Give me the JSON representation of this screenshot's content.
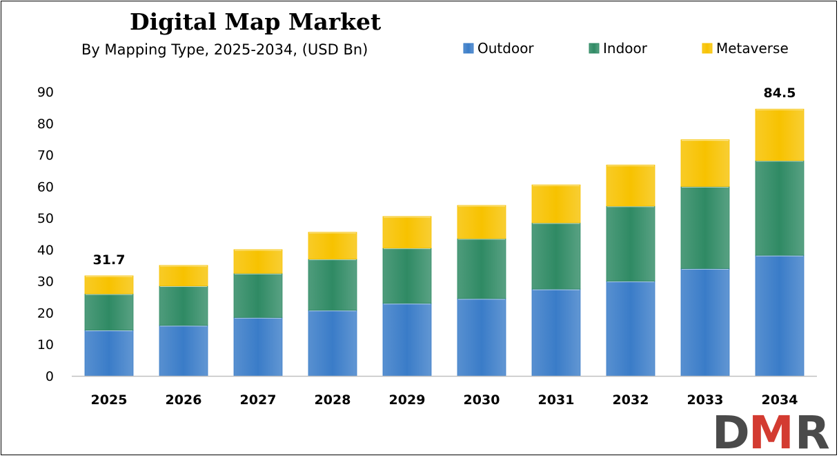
{
  "chart_data": {
    "type": "bar",
    "stacked": true,
    "title": "Digital Map Market",
    "subtitle": "By Mapping Type, 2025-2034, (USD Bn)",
    "categories": [
      "2025",
      "2026",
      "2027",
      "2028",
      "2029",
      "2030",
      "2031",
      "2032",
      "2033",
      "2034"
    ],
    "series": [
      {
        "name": "Outdoor",
        "color": "#3a7cc8",
        "values": [
          14.5,
          16.0,
          18.5,
          20.8,
          23.0,
          24.5,
          27.5,
          30.0,
          34.0,
          38.2
        ]
      },
      {
        "name": "Indoor",
        "color": "#2f8a64",
        "values": [
          11.5,
          12.5,
          14.0,
          16.2,
          17.5,
          19.0,
          21.0,
          23.8,
          26.0,
          30.0
        ]
      },
      {
        "name": "Metaverse",
        "color": "#f7c200",
        "values": [
          5.7,
          6.5,
          7.5,
          8.5,
          10.0,
          10.5,
          12.0,
          13.0,
          14.8,
          16.3
        ]
      }
    ],
    "data_labels": [
      {
        "category": "2025",
        "text": "31.7"
      },
      {
        "category": "2034",
        "text": "84.5"
      }
    ],
    "ylim": [
      0,
      90
    ],
    "yticks": [
      0,
      10,
      20,
      30,
      40,
      50,
      60,
      70,
      80,
      90
    ],
    "xlabel": "",
    "ylabel": "",
    "grid": false,
    "legend_position": "top-right"
  },
  "logo": {
    "text": "DMR",
    "color_d": "#4a4a4a",
    "color_m": "#d33b31",
    "color_r": "#4a4a4a"
  }
}
